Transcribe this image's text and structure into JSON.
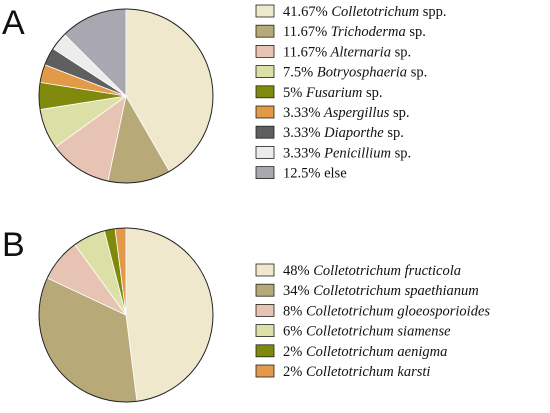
{
  "chart_data": [
    {
      "type": "pie",
      "panel_label": "A",
      "slices": [
        {
          "pct_label": "41.67%",
          "taxon": "Colletotrichum",
          "suffix": "spp.",
          "value": 41.67,
          "color": "#efe8cc"
        },
        {
          "pct_label": "11.67%",
          "taxon": "Trichoderma",
          "suffix": "sp.",
          "value": 11.67,
          "color": "#b7aa78"
        },
        {
          "pct_label": "11.67%",
          "taxon": "Alternaria",
          "suffix": "sp.",
          "value": 11.67,
          "color": "#e6c3b2"
        },
        {
          "pct_label": "7.5%",
          "taxon": "Botryosphaeria",
          "suffix": "sp.",
          "value": 7.5,
          "color": "#dde0a6"
        },
        {
          "pct_label": "5%",
          "taxon": "Fusarium",
          "suffix": "sp.",
          "value": 5,
          "color": "#7f8a0c"
        },
        {
          "pct_label": "3.33%",
          "taxon": "Aspergillus",
          "suffix": "sp.",
          "value": 3.33,
          "color": "#e29a48"
        },
        {
          "pct_label": "3.33%",
          "taxon": "Diaporthe",
          "suffix": "sp.",
          "value": 3.33,
          "color": "#5f5f5f"
        },
        {
          "pct_label": "3.33%",
          "taxon": "Penicillium",
          "suffix": "sp.",
          "value": 3.33,
          "color": "#ececec"
        },
        {
          "pct_label": "12.5%",
          "taxon": "",
          "suffix": "else",
          "value": 12.5,
          "color": "#a9a8b0"
        }
      ]
    },
    {
      "type": "pie",
      "panel_label": "B",
      "slices": [
        {
          "pct_label": "48%",
          "taxon": "Colletotrichum fructicola",
          "suffix": "",
          "value": 48,
          "color": "#efe8cc"
        },
        {
          "pct_label": "34%",
          "taxon": "Colletotrichum spaethianum",
          "suffix": "",
          "value": 34,
          "color": "#b7aa78"
        },
        {
          "pct_label": "8%",
          "taxon": "Colletotrichum gloeosporioides",
          "suffix": "",
          "value": 8,
          "color": "#e6c3b2"
        },
        {
          "pct_label": "6%",
          "taxon": "Colletotrichum siamense",
          "suffix": "",
          "value": 6,
          "color": "#dde0a6"
        },
        {
          "pct_label": "2%",
          "taxon": "Colletotrichum aenigma",
          "suffix": "",
          "value": 2,
          "color": "#7f8a0c"
        },
        {
          "pct_label": "2%",
          "taxon": "Colletotrichum karsti",
          "suffix": "",
          "value": 2,
          "color": "#e29a48"
        }
      ]
    }
  ]
}
